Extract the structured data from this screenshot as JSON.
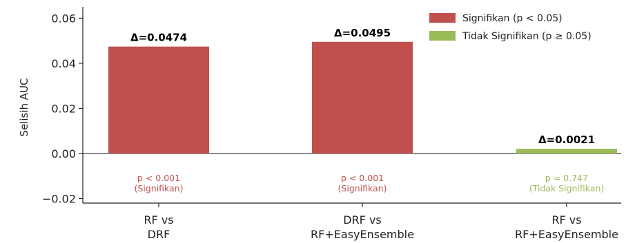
{
  "chart_data": {
    "type": "bar",
    "categories": [
      [
        "RF vs",
        "DRF"
      ],
      [
        "DRF vs",
        "RF+EasyEnsemble"
      ],
      [
        "RF vs",
        "RF+EasyEnsemble"
      ]
    ],
    "values": [
      0.0474,
      0.0495,
      0.0021
    ],
    "delta_labels": [
      "Δ=0.0474",
      "Δ=0.0495",
      "Δ=0.0021"
    ],
    "significant": [
      true,
      true,
      false
    ],
    "p_labels": [
      [
        "p < 0.001",
        "(Signifikan)"
      ],
      [
        "p < 0.001",
        "(Signifikan)"
      ],
      [
        "p = 0.747",
        "(Tidak Signifikan)"
      ]
    ],
    "ylabel": "Selisih AUC",
    "xlabel": "",
    "ylim": [
      -0.022,
      0.065
    ],
    "yticks": [
      -0.02,
      0.0,
      0.02,
      0.04,
      0.06
    ],
    "ytick_labels": [
      "−0.02",
      "0.00",
      "0.02",
      "0.04",
      "0.06"
    ],
    "legend": {
      "placement": "top-right",
      "entries": [
        {
          "label": "Signifikan (p < 0.05)",
          "color": "#c0504d"
        },
        {
          "label": "Tidak Signifikan (p ≥ 0.05)",
          "color": "#9bbb59"
        }
      ]
    },
    "colors": {
      "significant": "#c0504d",
      "not_significant": "#9bbb59"
    },
    "grid": false
  }
}
